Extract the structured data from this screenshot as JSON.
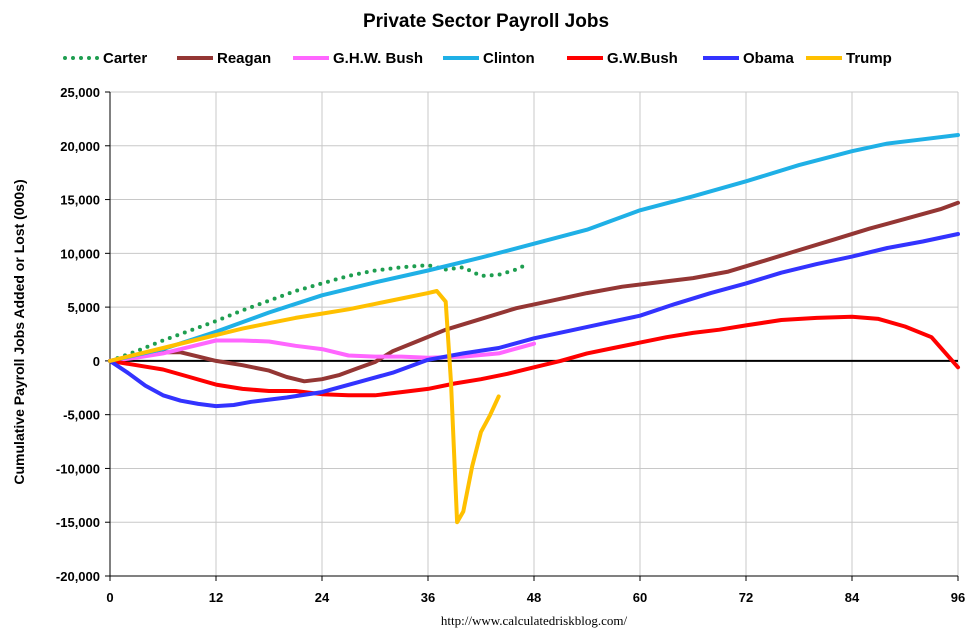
{
  "chart_data": {
    "type": "line",
    "title": "Private Sector Payroll Jobs",
    "xlabel": "",
    "ylabel": "Cumulative Payroll Jobs Added or  Lost (000s)",
    "source": "http://www.calculatedriskblog.com/",
    "xlim": [
      0,
      96
    ],
    "ylim": [
      -20000,
      25000
    ],
    "x_ticks": [
      "0",
      "12",
      "24",
      "36",
      "48",
      "60",
      "72",
      "84",
      "96"
    ],
    "y_ticks": [
      "25,000",
      "20,000",
      "15,000",
      "10,000",
      "5,000",
      "0",
      "-5,000",
      "-10,000",
      "-15,000",
      "-20,000"
    ],
    "legend_position": "top",
    "grid": true,
    "series": [
      {
        "name": "Carter",
        "color": "#1E9E50",
        "style": "dotted",
        "points": [
          [
            0,
            0
          ],
          [
            3,
            900
          ],
          [
            6,
            1900
          ],
          [
            9,
            2800
          ],
          [
            12,
            3700
          ],
          [
            15,
            4700
          ],
          [
            18,
            5600
          ],
          [
            21,
            6500
          ],
          [
            24,
            7200
          ],
          [
            27,
            7900
          ],
          [
            30,
            8400
          ],
          [
            33,
            8700
          ],
          [
            36,
            8900
          ],
          [
            38,
            8500
          ],
          [
            40,
            8700
          ],
          [
            42,
            7900
          ],
          [
            44,
            8000
          ],
          [
            46,
            8500
          ],
          [
            47,
            8900
          ]
        ]
      },
      {
        "name": "Reagan",
        "color": "#943634",
        "style": "solid",
        "points": [
          [
            0,
            0
          ],
          [
            3,
            500
          ],
          [
            6,
            800
          ],
          [
            8,
            800
          ],
          [
            10,
            400
          ],
          [
            12,
            0
          ],
          [
            15,
            -400
          ],
          [
            18,
            -900
          ],
          [
            20,
            -1500
          ],
          [
            22,
            -1900
          ],
          [
            24,
            -1700
          ],
          [
            26,
            -1300
          ],
          [
            28,
            -700
          ],
          [
            30,
            -100
          ],
          [
            32,
            900
          ],
          [
            35,
            1900
          ],
          [
            38,
            2900
          ],
          [
            42,
            3900
          ],
          [
            46,
            4900
          ],
          [
            50,
            5600
          ],
          [
            54,
            6300
          ],
          [
            58,
            6900
          ],
          [
            62,
            7300
          ],
          [
            66,
            7700
          ],
          [
            70,
            8300
          ],
          [
            74,
            9300
          ],
          [
            78,
            10300
          ],
          [
            82,
            11300
          ],
          [
            86,
            12300
          ],
          [
            90,
            13200
          ],
          [
            94,
            14100
          ],
          [
            96,
            14700
          ]
        ]
      },
      {
        "name": "G.H.W. Bush",
        "color": "#FF66FF",
        "style": "solid",
        "points": [
          [
            0,
            0
          ],
          [
            3,
            300
          ],
          [
            6,
            700
          ],
          [
            9,
            1300
          ],
          [
            12,
            1900
          ],
          [
            15,
            1900
          ],
          [
            18,
            1800
          ],
          [
            21,
            1400
          ],
          [
            24,
            1100
          ],
          [
            27,
            500
          ],
          [
            30,
            400
          ],
          [
            33,
            400
          ],
          [
            36,
            300
          ],
          [
            40,
            400
          ],
          [
            44,
            700
          ],
          [
            48,
            1600
          ]
        ]
      },
      {
        "name": "Clinton",
        "color": "#1FB0E6",
        "style": "solid",
        "points": [
          [
            0,
            0
          ],
          [
            6,
            1100
          ],
          [
            12,
            2700
          ],
          [
            18,
            4500
          ],
          [
            24,
            6100
          ],
          [
            30,
            7300
          ],
          [
            36,
            8400
          ],
          [
            42,
            9600
          ],
          [
            48,
            10900
          ],
          [
            54,
            12200
          ],
          [
            60,
            14000
          ],
          [
            66,
            15300
          ],
          [
            72,
            16700
          ],
          [
            78,
            18200
          ],
          [
            84,
            19500
          ],
          [
            88,
            20200
          ],
          [
            92,
            20600
          ],
          [
            96,
            21000
          ]
        ]
      },
      {
        "name": "G.W.Bush",
        "color": "#FF0000",
        "style": "solid",
        "points": [
          [
            0,
            0
          ],
          [
            3,
            -400
          ],
          [
            6,
            -800
          ],
          [
            9,
            -1500
          ],
          [
            12,
            -2200
          ],
          [
            15,
            -2600
          ],
          [
            18,
            -2800
          ],
          [
            21,
            -2800
          ],
          [
            24,
            -3100
          ],
          [
            27,
            -3200
          ],
          [
            30,
            -3200
          ],
          [
            33,
            -2900
          ],
          [
            36,
            -2600
          ],
          [
            39,
            -2100
          ],
          [
            42,
            -1700
          ],
          [
            45,
            -1200
          ],
          [
            48,
            -600
          ],
          [
            51,
            0
          ],
          [
            54,
            700
          ],
          [
            57,
            1200
          ],
          [
            60,
            1700
          ],
          [
            63,
            2200
          ],
          [
            66,
            2600
          ],
          [
            69,
            2900
          ],
          [
            72,
            3300
          ],
          [
            76,
            3800
          ],
          [
            80,
            4000
          ],
          [
            84,
            4100
          ],
          [
            87,
            3900
          ],
          [
            90,
            3200
          ],
          [
            93,
            2200
          ],
          [
            96,
            -600
          ]
        ]
      },
      {
        "name": "Obama",
        "color": "#3333FF",
        "style": "solid",
        "points": [
          [
            0,
            0
          ],
          [
            2,
            -1100
          ],
          [
            4,
            -2300
          ],
          [
            6,
            -3200
          ],
          [
            8,
            -3700
          ],
          [
            10,
            -4000
          ],
          [
            12,
            -4200
          ],
          [
            14,
            -4100
          ],
          [
            16,
            -3800
          ],
          [
            20,
            -3400
          ],
          [
            24,
            -2900
          ],
          [
            28,
            -2000
          ],
          [
            32,
            -1100
          ],
          [
            36,
            100
          ],
          [
            40,
            700
          ],
          [
            44,
            1200
          ],
          [
            48,
            2100
          ],
          [
            52,
            2800
          ],
          [
            56,
            3500
          ],
          [
            60,
            4200
          ],
          [
            64,
            5300
          ],
          [
            68,
            6300
          ],
          [
            72,
            7200
          ],
          [
            76,
            8200
          ],
          [
            80,
            9000
          ],
          [
            84,
            9700
          ],
          [
            88,
            10500
          ],
          [
            92,
            11100
          ],
          [
            96,
            11800
          ]
        ]
      },
      {
        "name": "Trump",
        "color": "#FFC000",
        "style": "solid",
        "points": [
          [
            0,
            0
          ],
          [
            3,
            600
          ],
          [
            6,
            1200
          ],
          [
            9,
            1800
          ],
          [
            12,
            2400
          ],
          [
            15,
            3000
          ],
          [
            18,
            3500
          ],
          [
            21,
            4000
          ],
          [
            24,
            4400
          ],
          [
            27,
            4800
          ],
          [
            30,
            5300
          ],
          [
            33,
            5800
          ],
          [
            36,
            6300
          ],
          [
            37,
            6500
          ],
          [
            38,
            5500
          ],
          [
            38.6,
            -2000
          ],
          [
            39.3,
            -15000
          ],
          [
            40,
            -14000
          ],
          [
            41,
            -9800
          ],
          [
            42,
            -6600
          ],
          [
            43,
            -5100
          ],
          [
            44,
            -3300
          ]
        ]
      }
    ]
  }
}
